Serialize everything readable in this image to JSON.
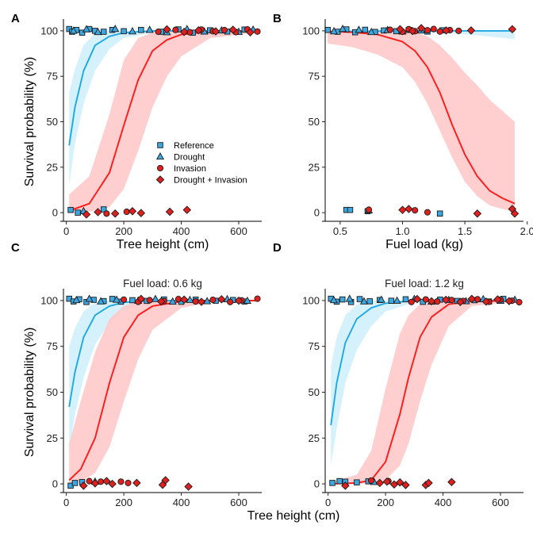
{
  "colors": {
    "reference_fill": "#3da7e0",
    "drought_fill": "#3da7e0",
    "invasion_fill": "#e0201f",
    "combined_fill": "#e0201f",
    "blue_line": "#1fa8e4",
    "red_line": "#ff1a1a",
    "blue_band": "#cdeefb",
    "red_band": "#ffc6c6",
    "point_stroke": "#1a1a1a"
  },
  "legend": {
    "items": [
      {
        "label": "Reference",
        "marker": "square-icon"
      },
      {
        "label": "Drought",
        "marker": "triangle-icon"
      },
      {
        "label": "Invasion",
        "marker": "circle-icon"
      },
      {
        "label": "Drought + Invasion",
        "marker": "diamond-icon"
      }
    ]
  },
  "chart_data": [
    {
      "panel": "A",
      "type": "line",
      "subtitle": "",
      "xlabel": "Tree height (cm)",
      "ylabel": "Survival probability (%)",
      "xlim": [
        -10,
        680
      ],
      "ylim": [
        -3,
        103
      ],
      "xticks": [
        0,
        200,
        400,
        600
      ],
      "yticks": [
        0,
        25,
        50,
        75,
        100
      ],
      "series": [
        {
          "name": "Reference / Drought",
          "x": [
            10,
            30,
            60,
            100,
            150,
            200,
            300,
            660
          ],
          "y": [
            37,
            58,
            78,
            92,
            97,
            99,
            100,
            100
          ],
          "lower": [
            15,
            38,
            60,
            78,
            90,
            96,
            99,
            99.5
          ],
          "upper": [
            66,
            79,
            92,
            99,
            100,
            100,
            100,
            100
          ]
        },
        {
          "name": "Invasion / Drought + Invasion",
          "x": [
            10,
            80,
            150,
            200,
            250,
            300,
            350,
            400,
            500,
            660
          ],
          "y": [
            1,
            5,
            22,
            48,
            73,
            89,
            95,
            98,
            99.5,
            100
          ],
          "lower": [
            0,
            0.5,
            3,
            13,
            34,
            58,
            75,
            86,
            96,
            99
          ],
          "upper": [
            10,
            20,
            54,
            84,
            96,
            99,
            100,
            100,
            100,
            100
          ]
        }
      ],
      "points": [
        {
          "group": "Reference",
          "x": [
            10,
            20,
            35,
            55,
            80,
            100,
            130,
            160,
            200,
            260,
            330,
            390,
            440,
            500,
            560,
            620,
            15,
            40,
            130
          ],
          "y": [
            101,
            99.5,
            100.5,
            99,
            101,
            100,
            99.5,
            100.5,
            99.8,
            100.5,
            99.5,
            100.8,
            99,
            100.3,
            99.6,
            100.7,
            1.5,
            0,
            1.8
          ]
        },
        {
          "group": "Drought",
          "x": [
            25,
            70,
            110,
            170,
            230,
            290,
            350,
            420,
            480,
            540,
            600,
            650,
            60
          ],
          "y": [
            100,
            100.8,
            99.3,
            101,
            99.7,
            100.5,
            99.2,
            100.9,
            99.6,
            100.2,
            99.4,
            100.6,
            0.8
          ]
        },
        {
          "group": "Invasion",
          "x": [
            320,
            380,
            430,
            470,
            510,
            550,
            590,
            630,
            665,
            140,
            210
          ],
          "y": [
            99.5,
            100.5,
            99.2,
            100.7,
            99.8,
            100.4,
            99.3,
            100.8,
            99.6,
            -0.5,
            0.5
          ]
        },
        {
          "group": "Drought + Invasion",
          "x": [
            350,
            410,
            460,
            520,
            580,
            640,
            70,
            110,
            170,
            230,
            260,
            360,
            420
          ],
          "y": [
            100.8,
            99.4,
            100.3,
            99.7,
            100.6,
            99.2,
            -1,
            0.3,
            -0.5,
            0.8,
            -0.2,
            0.5,
            1.5
          ]
        }
      ]
    },
    {
      "panel": "B",
      "type": "line",
      "subtitle": "",
      "xlabel": "Fuel load (kg)",
      "ylabel": "",
      "xlim": [
        0.38,
        1.97
      ],
      "ylim": [
        -3,
        103
      ],
      "xticks": [
        0.5,
        1.0,
        1.5,
        2.0
      ],
      "xtick_labels": [
        "0.5",
        "1.0",
        "1.5",
        "2.0"
      ],
      "yticks": [
        0,
        25,
        50,
        75,
        100
      ],
      "series": [
        {
          "name": "Reference / Drought",
          "x": [
            0.4,
            0.6,
            0.8,
            1.0,
            1.2,
            1.4,
            1.6,
            1.9
          ],
          "y": [
            99.5,
            99.7,
            99.8,
            99.9,
            99.9,
            100,
            100,
            100
          ],
          "lower": [
            98.5,
            99,
            99.2,
            99.2,
            99,
            98.5,
            97.5,
            95.5
          ],
          "upper": [
            100,
            100,
            100,
            100,
            100,
            100,
            100,
            100
          ]
        },
        {
          "name": "Invasion / Drought + Invasion",
          "x": [
            0.4,
            0.6,
            0.8,
            1.0,
            1.1,
            1.2,
            1.3,
            1.4,
            1.5,
            1.6,
            1.7,
            1.8,
            1.9
          ],
          "y": [
            99.7,
            99.2,
            98,
            94,
            89,
            80,
            66,
            48,
            32,
            20,
            12,
            8,
            5
          ],
          "lower": [
            93,
            91,
            87,
            80,
            72,
            60,
            45,
            30,
            17,
            9,
            4,
            2,
            0.5
          ],
          "upper": [
            100,
            100,
            100,
            99.5,
            99,
            97,
            92,
            85,
            77,
            70,
            62,
            56,
            50
          ]
        }
      ],
      "points": [
        {
          "group": "Reference",
          "x": [
            0.4,
            0.48,
            0.55,
            0.62,
            0.7,
            0.78,
            0.85,
            0.95,
            1.05,
            1.2,
            1.32,
            0.55,
            0.58,
            0.72,
            1.3
          ],
          "y": [
            100.5,
            99.5,
            100.8,
            99.2,
            100.6,
            99.4,
            100.2,
            99.8,
            100.5,
            99.6,
            100.3,
            1.5,
            1.5,
            0.8,
            -0.5
          ]
        },
        {
          "group": "Drought",
          "x": [
            0.45,
            0.52,
            0.65,
            0.75,
            0.88,
            1.0,
            1.15,
            0.73
          ],
          "y": [
            99.7,
            101,
            100.5,
            99.3,
            100.4,
            99.6,
            100.1,
            1.2
          ]
        },
        {
          "group": "Invasion",
          "x": [
            0.9,
            1.0,
            1.05,
            1.1,
            1.2,
            1.25,
            1.3,
            1.38,
            1.45,
            0.73,
            1.1,
            1.2
          ],
          "y": [
            100.6,
            99.5,
            100.9,
            99.8,
            100.3,
            101,
            99.6,
            100.4,
            100,
            1.6,
            1.3,
            0.2
          ]
        },
        {
          "group": "Drought + Invasion",
          "x": [
            0.98,
            1.08,
            1.15,
            1.35,
            1.55,
            1.88,
            1.0,
            1.05,
            1.6,
            1.88,
            1.9
          ],
          "y": [
            100.9,
            99.9,
            101.5,
            100.2,
            100.2,
            100.9,
            1.5,
            2,
            -0.5,
            2,
            -0.5
          ]
        }
      ]
    },
    {
      "panel": "C",
      "type": "line",
      "subtitle": "Fuel load: 0.6 kg",
      "xlabel": "",
      "ylabel": "Survival probability (%)",
      "xlim": [
        -10,
        680
      ],
      "ylim": [
        -3,
        103
      ],
      "xticks": [
        0,
        200,
        400,
        600
      ],
      "yticks": [
        0,
        25,
        50,
        75,
        100
      ],
      "series": [
        {
          "name": "Reference / Drought",
          "x": [
            10,
            30,
            60,
            100,
            150,
            200,
            300,
            660
          ],
          "y": [
            42,
            61,
            80,
            92,
            97,
            99,
            100,
            100
          ],
          "lower": [
            18,
            38,
            58,
            76,
            88,
            95,
            99,
            99.5
          ],
          "upper": [
            75,
            85,
            94,
            99,
            100,
            100,
            100,
            100
          ]
        },
        {
          "name": "Invasion / Drought + Invasion",
          "x": [
            10,
            50,
            100,
            150,
            200,
            250,
            300,
            400,
            500,
            660
          ],
          "y": [
            2,
            8,
            25,
            55,
            80,
            92,
            97,
            99.5,
            100,
            100
          ],
          "lower": [
            0,
            1,
            6,
            20,
            45,
            68,
            84,
            96,
            99,
            99.5
          ],
          "upper": [
            22,
            45,
            72,
            90,
            97,
            99.5,
            100,
            100,
            100,
            100
          ]
        }
      ],
      "points": [
        {
          "group": "Reference",
          "x": [
            10,
            25,
            45,
            70,
            95,
            130,
            160,
            190,
            230,
            280,
            340,
            400,
            450,
            520,
            580,
            620,
            15,
            30,
            55
          ],
          "y": [
            101,
            99.5,
            100.7,
            99.2,
            100.4,
            99.7,
            100.9,
            99.4,
            100.2,
            99.8,
            100.6,
            99.3,
            100.5,
            99.9,
            100.3,
            99.5,
            -1,
            0.5,
            1
          ]
        },
        {
          "group": "Drought",
          "x": [
            35,
            80,
            120,
            175,
            250,
            310,
            370,
            430,
            490,
            560,
            630,
            100
          ],
          "y": [
            100.2,
            100.9,
            99.5,
            100.4,
            99.9,
            100.8,
            99.4,
            100.3,
            99.6,
            100.7,
            99.8,
            1.2
          ]
        },
        {
          "group": "Invasion",
          "x": [
            200,
            250,
            290,
            340,
            390,
            450,
            510,
            570,
            610,
            665,
            80,
            120,
            190,
            215
          ],
          "y": [
            100.5,
            99.3,
            100.2,
            99.7,
            100.8,
            99.5,
            100.4,
            99.2,
            100.1,
            101,
            1.5,
            1.2,
            1.2,
            0.5
          ]
        },
        {
          "group": "Drought + Invasion",
          "x": [
            260,
            330,
            410,
            470,
            540,
            600,
            60,
            100,
            140,
            160,
            245,
            335,
            345,
            425
          ],
          "y": [
            100.9,
            99.5,
            100.5,
            99.3,
            100.7,
            99.9,
            -1,
            0.3,
            1.5,
            0,
            0.5,
            -0.5,
            2,
            -1.5
          ]
        }
      ]
    },
    {
      "panel": "D",
      "type": "line",
      "subtitle": "Fuel load: 1.2 kg",
      "xlabel": "",
      "ylabel": "",
      "xlim": [
        -10,
        680
      ],
      "ylim": [
        -3,
        103
      ],
      "xticks": [
        0,
        200,
        400,
        600
      ],
      "yticks": [
        0,
        25,
        50,
        75,
        100
      ],
      "series": [
        {
          "name": "Reference / Drought",
          "x": [
            10,
            30,
            60,
            100,
            150,
            200,
            300,
            660
          ],
          "y": [
            32,
            55,
            77,
            90,
            96,
            98.5,
            100,
            100
          ],
          "lower": [
            10,
            30,
            55,
            73,
            86,
            94,
            99,
            99.5
          ],
          "upper": [
            64,
            80,
            92,
            98,
            100,
            100,
            100,
            100
          ]
        },
        {
          "name": "Invasion / Drought + Invasion",
          "x": [
            10,
            100,
            150,
            200,
            250,
            280,
            320,
            360,
            420,
            500,
            660
          ],
          "y": [
            0,
            0.5,
            2,
            12,
            38,
            58,
            80,
            91,
            98,
            99.5,
            100
          ],
          "lower": [
            0,
            0,
            0.2,
            2,
            10,
            22,
            45,
            65,
            86,
            97,
            99.5
          ],
          "upper": [
            1,
            5,
            18,
            52,
            82,
            92,
            98,
            99.5,
            100,
            100,
            100
          ]
        }
      ],
      "points": [
        {
          "group": "Reference",
          "x": [
            10,
            30,
            50,
            80,
            110,
            145,
            180,
            220,
            270,
            330,
            390,
            450,
            510,
            560,
            610,
            15,
            40,
            60,
            100,
            140
          ],
          "y": [
            101,
            99.4,
            100.6,
            99.2,
            100.8,
            99.6,
            100.3,
            99.9,
            100.7,
            99.3,
            100.5,
            99.8,
            100.2,
            99.5,
            100.9,
            0.5,
            1.5,
            1.2,
            0.8,
            1.4
          ]
        },
        {
          "group": "Drought",
          "x": [
            20,
            75,
            125,
            185,
            240,
            300,
            360,
            420,
            480,
            540,
            600,
            650,
            160
          ],
          "y": [
            100.2,
            100.9,
            99.5,
            100.4,
            99.9,
            100.8,
            99.4,
            100.3,
            99.6,
            100.7,
            99.8,
            100.4,
            1
          ]
        },
        {
          "group": "Invasion",
          "x": [
            290,
            340,
            380,
            430,
            470,
            520,
            560,
            600,
            640,
            665,
            210,
            150
          ],
          "y": [
            99.2,
            100.6,
            99.5,
            100.3,
            99.8,
            100.7,
            99.3,
            100.5,
            99.9,
            99.1,
            1.5,
            1.8
          ]
        },
        {
          "group": "Drought + Invasion",
          "x": [
            310,
            360,
            410,
            460,
            500,
            550,
            590,
            630,
            60,
            180,
            205,
            230,
            250,
            270,
            340,
            350,
            430
          ],
          "y": [
            100.8,
            99.6,
            100.4,
            99.2,
            100.9,
            99.4,
            100.6,
            99.7,
            -1,
            0.5,
            1.2,
            -0.3,
            0.8,
            -0.6,
            -0.6,
            0.5,
            1
          ]
        }
      ]
    }
  ],
  "shared_xlabel": "Tree height (cm)"
}
